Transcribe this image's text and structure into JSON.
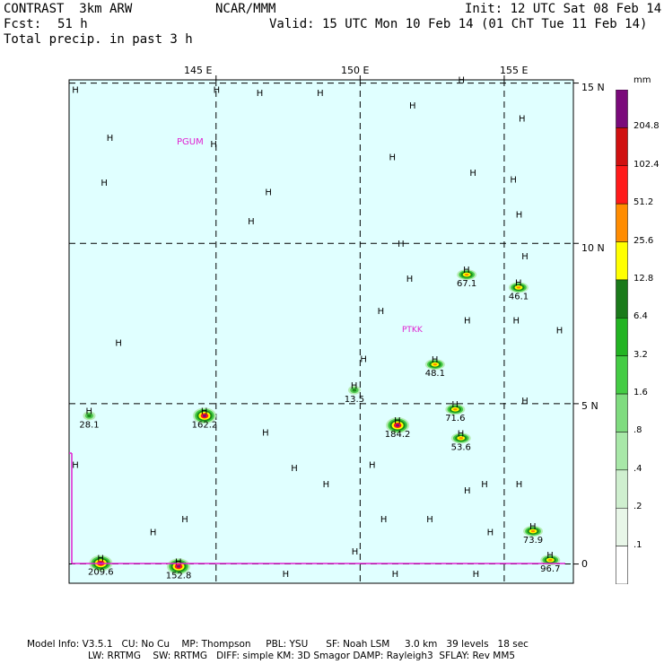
{
  "header": {
    "model": "CONTRAST  3km ARW",
    "center": "NCAR/MMM",
    "init": "Init: 12 UTC Sat 08 Feb 14",
    "fcst_label": "Fcst:",
    "fcst_value": "51 h",
    "valid": "Valid: 15 UTC Mon 10 Feb 14 (01 ChT Tue 11 Feb 14)",
    "field": "Total precip. in past 3 h"
  },
  "axes": {
    "lon_labels": [
      "145 E",
      "150 E",
      "155 E"
    ],
    "lat_labels": [
      "15 N",
      "10 N",
      "5 N",
      "0"
    ]
  },
  "stations": [
    {
      "id": "PGUM",
      "color": "#e020d0"
    },
    {
      "id": "PTKK",
      "color": "#e020d0"
    }
  ],
  "colorbar": {
    "unit": "mm",
    "levels": [
      "204.8",
      "102.4",
      "51.2",
      "25.6",
      "12.8",
      "6.4",
      "3.2",
      "1.6",
      ".8",
      ".4",
      ".2",
      ".1"
    ],
    "colors": [
      "#7a0a7a",
      "#d01010",
      "#ff1a1a",
      "#ff8c00",
      "#ffff00",
      "#1a7a1a",
      "#22b422",
      "#44cc44",
      "#7fdc7f",
      "#a8e8a8",
      "#cfefcf",
      "#e8f6e8",
      "#ffffff"
    ]
  },
  "map_colors": {
    "background": "#e0ffff"
  },
  "markers": [
    {
      "text": "H",
      "lon": 140.0,
      "lat": 14.7
    },
    {
      "text": "H",
      "lon": 141.2,
      "lat": 13.2
    },
    {
      "text": "H",
      "lon": 141.0,
      "lat": 11.8
    },
    {
      "text": "H",
      "lon": 144.9,
      "lat": 14.7
    },
    {
      "text": "H",
      "lon": 146.4,
      "lat": 14.6
    },
    {
      "text": "H",
      "lon": 148.5,
      "lat": 14.6
    },
    {
      "text": "H",
      "lon": 144.8,
      "lat": 13.0
    },
    {
      "text": "H",
      "lon": 146.7,
      "lat": 11.5
    },
    {
      "text": "H",
      "lon": 146.1,
      "lat": 10.6
    },
    {
      "text": "H",
      "lon": 153.4,
      "lat": 15.0
    },
    {
      "text": "H",
      "lon": 151.7,
      "lat": 14.2
    },
    {
      "text": "H",
      "lon": 155.5,
      "lat": 13.8
    },
    {
      "text": "H",
      "lon": 151.0,
      "lat": 12.6
    },
    {
      "text": "H",
      "lon": 153.8,
      "lat": 12.1
    },
    {
      "text": "H",
      "lon": 155.2,
      "lat": 11.9
    },
    {
      "text": "H",
      "lon": 155.4,
      "lat": 10.8
    },
    {
      "text": "H",
      "lon": 151.3,
      "lat": 9.9
    },
    {
      "text": "H",
      "lon": 155.6,
      "lat": 9.5
    },
    {
      "text": "H",
      "lon": 151.6,
      "lat": 8.8
    },
    {
      "text": "H",
      "lon": 150.6,
      "lat": 7.8
    },
    {
      "text": "H",
      "lon": 153.6,
      "lat": 7.5
    },
    {
      "text": "H",
      "lon": 155.3,
      "lat": 7.5
    },
    {
      "text": "H",
      "lon": 156.8,
      "lat": 7.2
    },
    {
      "text": "H",
      "lon": 141.5,
      "lat": 6.8
    },
    {
      "text": "H",
      "lon": 150.0,
      "lat": 6.3
    },
    {
      "text": "H",
      "lon": 155.6,
      "lat": 5.0
    },
    {
      "text": "H",
      "lon": 146.6,
      "lat": 4.0
    },
    {
      "text": "H",
      "lon": 147.6,
      "lat": 2.9
    },
    {
      "text": "H",
      "lon": 148.7,
      "lat": 2.4
    },
    {
      "text": "H",
      "lon": 150.3,
      "lat": 3.0
    },
    {
      "text": "H",
      "lon": 154.2,
      "lat": 2.4
    },
    {
      "text": "H",
      "lon": 155.4,
      "lat": 2.4
    },
    {
      "text": "H",
      "lon": 153.6,
      "lat": 2.2
    },
    {
      "text": "H",
      "lon": 140.0,
      "lat": 3.0
    },
    {
      "text": "H",
      "lon": 143.8,
      "lat": 1.3
    },
    {
      "text": "H",
      "lon": 142.7,
      "lat": 0.9
    },
    {
      "text": "H",
      "lon": 150.7,
      "lat": 1.3
    },
    {
      "text": "H",
      "lon": 152.3,
      "lat": 1.3
    },
    {
      "text": "H",
      "lon": 154.4,
      "lat": 0.9
    },
    {
      "text": "H",
      "lon": 149.7,
      "lat": 0.3
    },
    {
      "text": "H",
      "lon": 147.3,
      "lat": -0.4
    },
    {
      "text": "H",
      "lon": 151.1,
      "lat": -0.4
    },
    {
      "text": "H",
      "lon": 153.9,
      "lat": -0.4
    }
  ],
  "precip": [
    {
      "label": "28.1",
      "lon": 140.6,
      "lat": 4.4,
      "intensity": 1
    },
    {
      "label": "162.2",
      "lon": 144.6,
      "lat": 4.4,
      "intensity": 3
    },
    {
      "label": "13.5",
      "lon": 149.8,
      "lat": 5.2,
      "intensity": 1
    },
    {
      "label": "184.2",
      "lon": 151.3,
      "lat": 4.1,
      "intensity": 3
    },
    {
      "label": "48.1",
      "lon": 152.6,
      "lat": 6.0,
      "intensity": 2
    },
    {
      "label": "71.6",
      "lon": 153.3,
      "lat": 4.6,
      "intensity": 2
    },
    {
      "label": "53.6",
      "lon": 153.5,
      "lat": 3.7,
      "intensity": 2
    },
    {
      "label": "67.1",
      "lon": 153.7,
      "lat": 8.8,
      "intensity": 2
    },
    {
      "label": "46.1",
      "lon": 155.5,
      "lat": 8.4,
      "intensity": 2
    },
    {
      "label": "73.9",
      "lon": 156.0,
      "lat": 0.8,
      "intensity": 2
    },
    {
      "label": "96.7",
      "lon": 156.6,
      "lat": -0.1,
      "intensity": 2
    },
    {
      "label": "209.6",
      "lon": 141.0,
      "lat": -0.2,
      "intensity": 3
    },
    {
      "label": "152.8",
      "lon": 143.7,
      "lat": -0.3,
      "intensity": 3
    }
  ],
  "footer": {
    "line1": "Model Info: V3.5.1   CU: No Cu    MP: Thompson     PBL: YSU      SF: Noah LSM     3.0 km   39 levels   18 sec",
    "line2": "LW: RRTMG    SW: RRTMG   DIFF: simple KM: 3D Smagor DAMP: Rayleigh3  SFLAY: Rev MM5"
  }
}
